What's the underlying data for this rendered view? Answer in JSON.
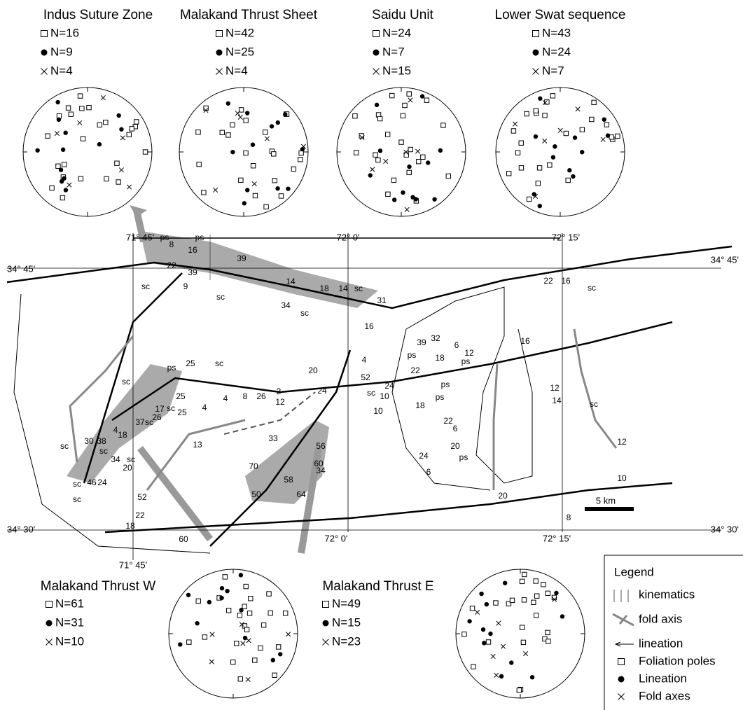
{
  "stereonets": [
    {
      "title": "Indus Suture Zone",
      "counts": [
        "N=16",
        "N=9",
        "N=4"
      ]
    },
    {
      "title": "Malakand Thrust Sheet",
      "counts": [
        "N=42",
        "N=25",
        "N=4"
      ]
    },
    {
      "title": "Saidu Unit",
      "counts": [
        "N=24",
        "N=7",
        "N=15"
      ]
    },
    {
      "title": "Lower Swat sequence",
      "counts": [
        "N=43",
        "N=24",
        "N=7"
      ]
    },
    {
      "title": "Malakand Thrust W",
      "counts": [
        "N=61",
        "N=31",
        "N=10"
      ]
    },
    {
      "title": "Malakand Thrust E",
      "counts": [
        "N=49",
        "N=15",
        "N=23"
      ]
    }
  ],
  "map": {
    "lon_labels": [
      "71° 45'",
      "72° 0'",
      "72° 15'",
      "71° 45'",
      "72° 0'",
      "72° 15'"
    ],
    "lat_labels": [
      "34° 45'",
      "34° 45'",
      "34° 30'",
      "34° 30'"
    ],
    "scale": "5 km",
    "labels": [
      "ps",
      "ps",
      "8",
      "16",
      "22",
      "39",
      "39",
      "sc",
      "9",
      "sc",
      "14",
      "18",
      "14",
      "sc",
      "34",
      "sc",
      "31",
      "16",
      "22",
      "16",
      "sc",
      "39",
      "32",
      "6",
      "12",
      "18",
      "ps",
      "22",
      "ps",
      "sc",
      "20",
      "4",
      "52",
      "sc",
      "ps",
      "25",
      "sc",
      "25",
      "25",
      "17",
      "sc",
      "26",
      "37",
      "sc",
      "4",
      "4",
      "8",
      "26",
      "2",
      "12",
      "24",
      "24",
      "10",
      "10",
      "ps",
      "18",
      "ps",
      "22",
      "6",
      "20",
      "ps",
      "24",
      "6",
      "16",
      "12",
      "14",
      "sc",
      "12",
      "10",
      "20",
      "8",
      "4",
      "18",
      "30",
      "38",
      "sc",
      "13",
      "33",
      "56",
      "60",
      "34",
      "70",
      "58",
      "50",
      "64",
      "34",
      "sc",
      "20",
      "46",
      "24",
      "sc",
      "52",
      "sc",
      "22",
      "18",
      "60",
      "sc"
    ]
  },
  "legend": {
    "title": "Legend",
    "items": [
      "kinematics",
      "fold axis",
      "lineation",
      "Foliation poles",
      "Lineation",
      "Fold axes"
    ]
  }
}
